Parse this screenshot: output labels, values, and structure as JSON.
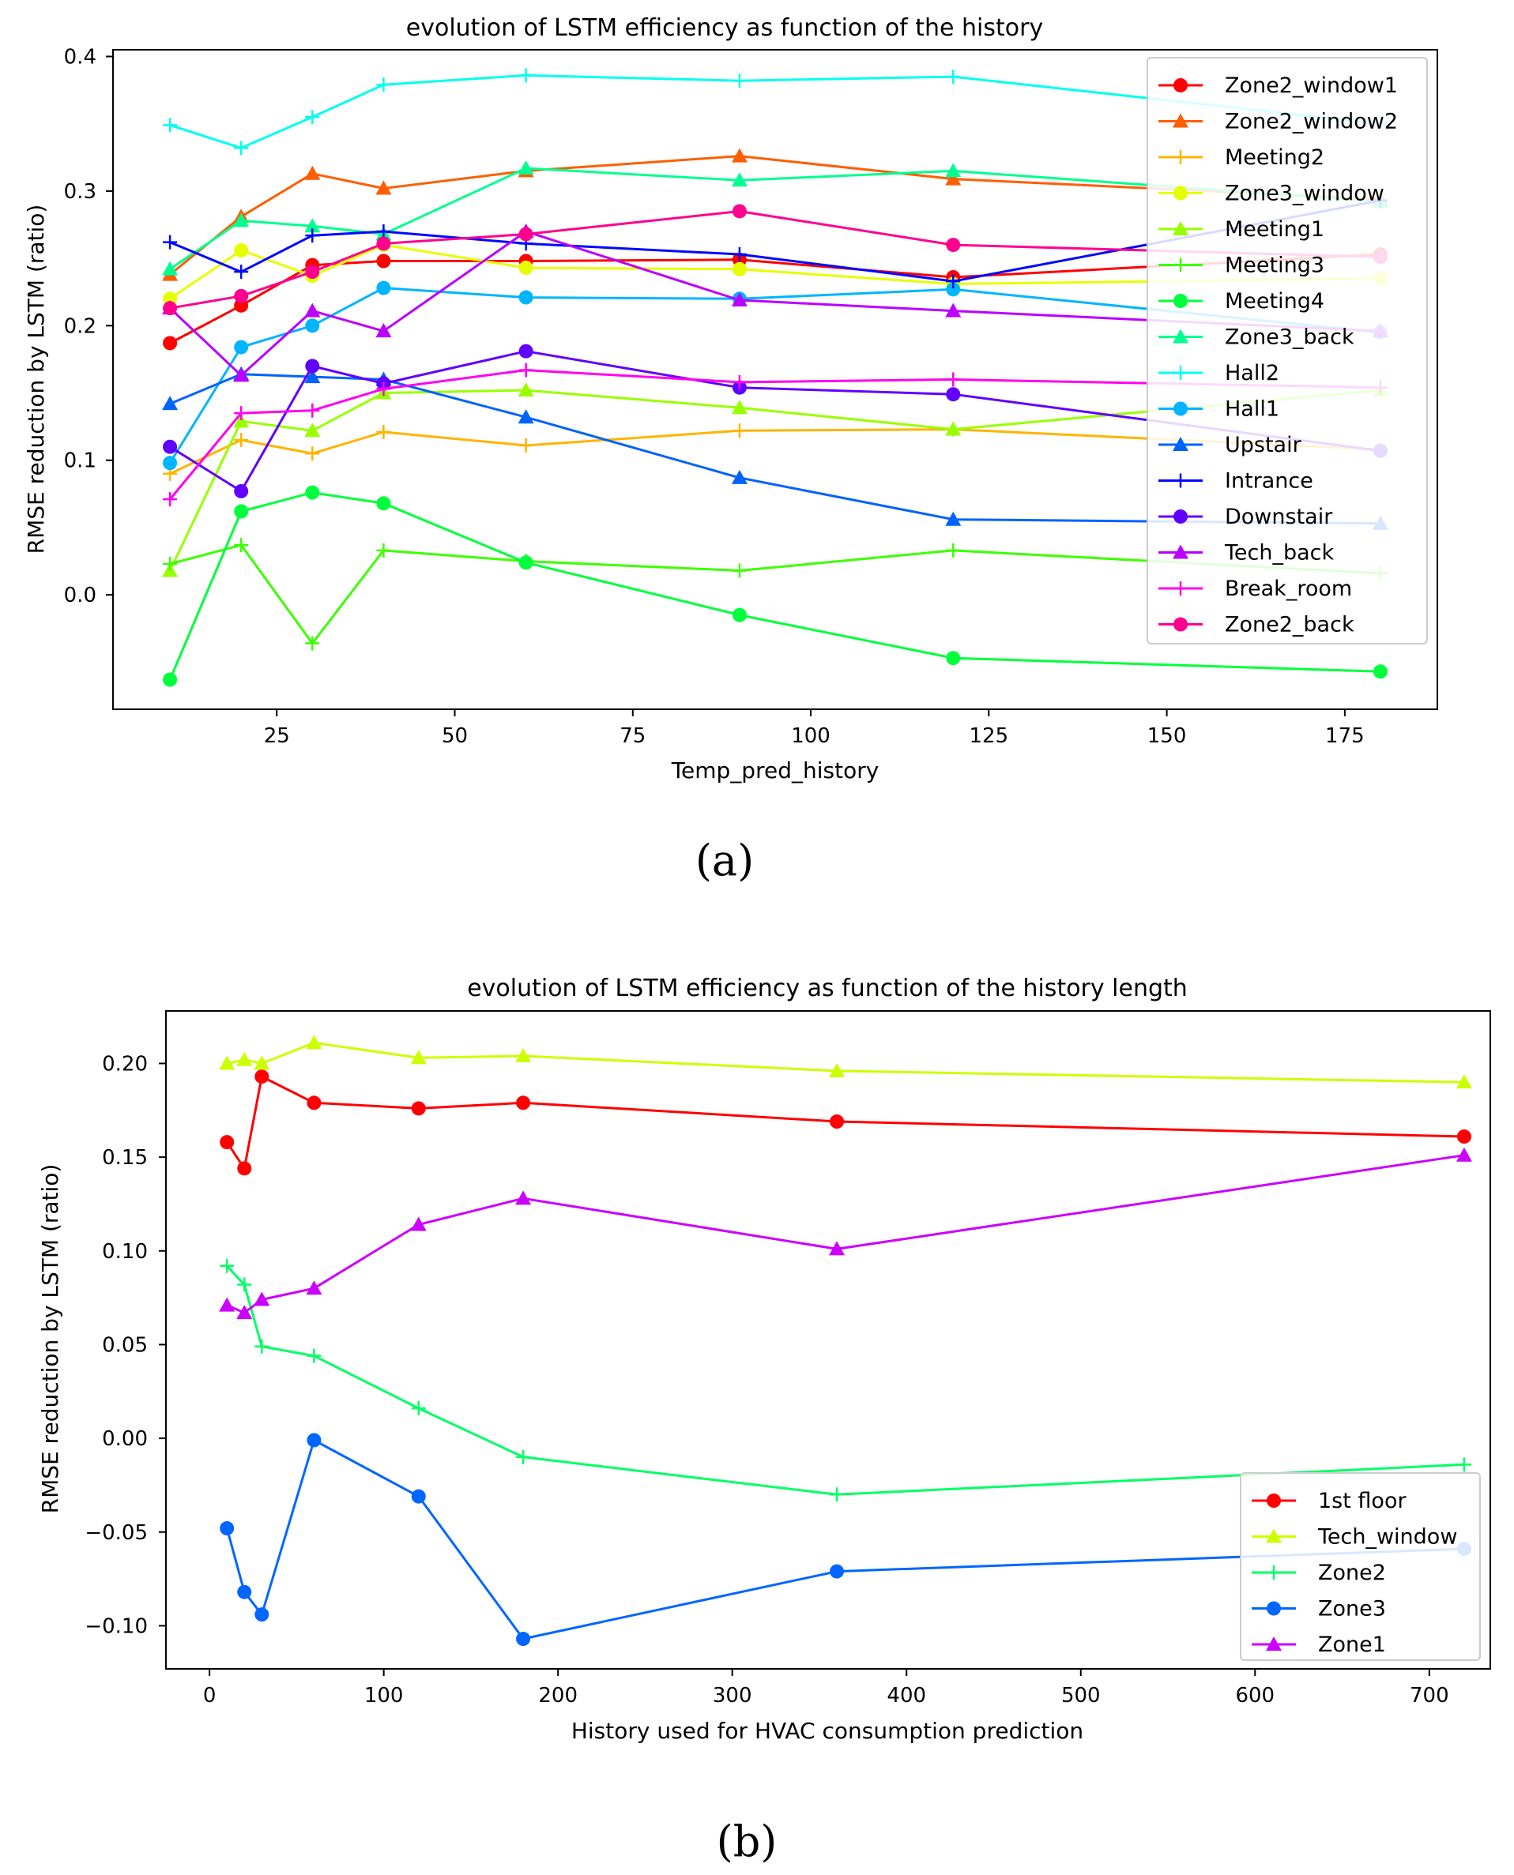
{
  "chart_data": [
    {
      "type": "line",
      "title": "evolution of LSTM efficiency as function of the history",
      "xlabel": "Temp_pred_history",
      "ylabel": "RMSE reduction by LSTM (ratio)",
      "xlim": [
        2,
        188
      ],
      "ylim": [
        -0.085,
        0.405
      ],
      "xticks": [
        25,
        50,
        75,
        100,
        125,
        150,
        175
      ],
      "yticks": [
        0.0,
        0.1,
        0.2,
        0.3,
        0.4
      ],
      "xtick_labels": [
        "25",
        "50",
        "75",
        "100",
        "125",
        "150",
        "175"
      ],
      "ytick_labels": [
        "0.0",
        "0.1",
        "0.2",
        "0.3",
        "0.4"
      ],
      "grid": false,
      "legend_position": "top-right",
      "caption": "(a)",
      "x": [
        10,
        20,
        30,
        40,
        60,
        90,
        120,
        180
      ],
      "series": [
        {
          "name": "Zone2_window1",
          "color": "#ff0000",
          "marker": "circle",
          "values": [
            0.187,
            0.215,
            0.245,
            0.248,
            0.248,
            0.249,
            0.236,
            0.253
          ]
        },
        {
          "name": "Zone2_window2",
          "color": "#ff5e00",
          "marker": "triangle",
          "values": [
            0.238,
            0.281,
            0.313,
            0.302,
            0.315,
            0.326,
            0.309,
            0.294
          ]
        },
        {
          "name": "Meeting2",
          "color": "#ffb400",
          "marker": "plus",
          "values": [
            0.09,
            0.115,
            0.105,
            0.121,
            0.111,
            0.122,
            0.123,
            0.108
          ]
        },
        {
          "name": "Zone3_window",
          "color": "#e6ff00",
          "marker": "circle",
          "values": [
            0.22,
            0.256,
            0.237,
            0.26,
            0.243,
            0.242,
            0.231,
            0.235
          ]
        },
        {
          "name": "Meeting1",
          "color": "#99ff00",
          "marker": "triangle",
          "values": [
            0.018,
            0.129,
            0.122,
            0.15,
            0.152,
            0.139,
            0.123,
            0.152
          ]
        },
        {
          "name": "Meeting3",
          "color": "#3cff00",
          "marker": "plus",
          "values": [
            0.023,
            0.037,
            -0.036,
            0.033,
            0.025,
            0.018,
            0.033,
            0.016
          ]
        },
        {
          "name": "Meeting4",
          "color": "#00ff3c",
          "marker": "circle",
          "values": [
            -0.063,
            0.062,
            0.076,
            0.068,
            0.024,
            -0.015,
            -0.047,
            -0.057
          ]
        },
        {
          "name": "Zone3_back",
          "color": "#00ff8f",
          "marker": "triangle",
          "values": [
            0.242,
            0.278,
            0.274,
            0.268,
            0.317,
            0.308,
            0.315,
            0.292
          ]
        },
        {
          "name": "Hall2",
          "color": "#00ffee",
          "marker": "plus",
          "values": [
            0.349,
            0.332,
            0.355,
            0.379,
            0.386,
            0.382,
            0.385,
            0.35
          ]
        },
        {
          "name": "Hall1",
          "color": "#00b5ff",
          "marker": "circle",
          "values": [
            0.098,
            0.184,
            0.2,
            0.228,
            0.221,
            0.22,
            0.227,
            0.195
          ]
        },
        {
          "name": "Upstair",
          "color": "#0062ff",
          "marker": "triangle",
          "values": [
            0.142,
            0.164,
            0.162,
            0.16,
            0.132,
            0.087,
            0.056,
            0.053
          ]
        },
        {
          "name": "Intrance",
          "color": "#0008ff",
          "marker": "plus",
          "values": [
            0.262,
            0.24,
            0.267,
            0.27,
            0.261,
            0.253,
            0.233,
            0.293
          ]
        },
        {
          "name": "Downstair",
          "color": "#6000ff",
          "marker": "circle",
          "values": [
            0.11,
            0.077,
            0.17,
            0.157,
            0.181,
            0.154,
            0.149,
            0.107
          ]
        },
        {
          "name": "Tech_back",
          "color": "#bc00ff",
          "marker": "triangle",
          "values": [
            0.213,
            0.163,
            0.211,
            0.196,
            0.27,
            0.219,
            0.211,
            0.196
          ]
        },
        {
          "name": "Break_room",
          "color": "#ff00f2",
          "marker": "plus",
          "values": [
            0.071,
            0.135,
            0.137,
            0.153,
            0.167,
            0.158,
            0.16,
            0.154
          ]
        },
        {
          "name": "Zone2_back",
          "color": "#ff008f",
          "marker": "circle",
          "values": [
            0.213,
            0.222,
            0.24,
            0.261,
            0.268,
            0.285,
            0.26,
            0.251
          ]
        }
      ]
    },
    {
      "type": "line",
      "title": "evolution of LSTM efficiency as function of the history length",
      "xlabel": "History used for HVAC consumption prediction",
      "ylabel": "RMSE reduction by LSTM (ratio)",
      "xlim": [
        -25,
        735
      ],
      "ylim": [
        -0.123,
        0.228
      ],
      "xticks": [
        0,
        100,
        200,
        300,
        400,
        500,
        600,
        700
      ],
      "yticks": [
        -0.1,
        -0.05,
        0.0,
        0.05,
        0.1,
        0.15,
        0.2
      ],
      "xtick_labels": [
        "0",
        "100",
        "200",
        "300",
        "400",
        "500",
        "600",
        "700"
      ],
      "ytick_labels": [
        "−0.10",
        "−0.05",
        "0.00",
        "0.05",
        "0.10",
        "0.15",
        "0.20"
      ],
      "grid": false,
      "legend_position": "lower-right",
      "caption": "(b)",
      "x": [
        10,
        20,
        30,
        60,
        120,
        180,
        360,
        720
      ],
      "series": [
        {
          "name": "1st floor",
          "color": "#ff0000",
          "marker": "circle",
          "values": [
            0.158,
            0.144,
            0.193,
            0.179,
            0.176,
            0.179,
            0.169,
            0.161
          ]
        },
        {
          "name": "Tech_window",
          "color": "#ccff00",
          "marker": "triangle",
          "values": [
            0.2,
            0.202,
            0.2,
            0.211,
            0.203,
            0.204,
            0.196,
            0.19
          ]
        },
        {
          "name": "Zone2",
          "color": "#00ff66",
          "marker": "plus",
          "values": [
            0.092,
            0.082,
            0.049,
            0.044,
            0.016,
            -0.01,
            -0.03,
            -0.014
          ]
        },
        {
          "name": "Zone3",
          "color": "#0066ff",
          "marker": "circle",
          "values": [
            -0.048,
            -0.082,
            -0.094,
            -0.001,
            -0.031,
            -0.107,
            -0.071,
            -0.059
          ]
        },
        {
          "name": "Zone1",
          "color": "#cc00ff",
          "marker": "triangle",
          "values": [
            0.071,
            0.067,
            0.074,
            0.08,
            0.114,
            0.128,
            0.101,
            0.151
          ]
        }
      ]
    }
  ]
}
